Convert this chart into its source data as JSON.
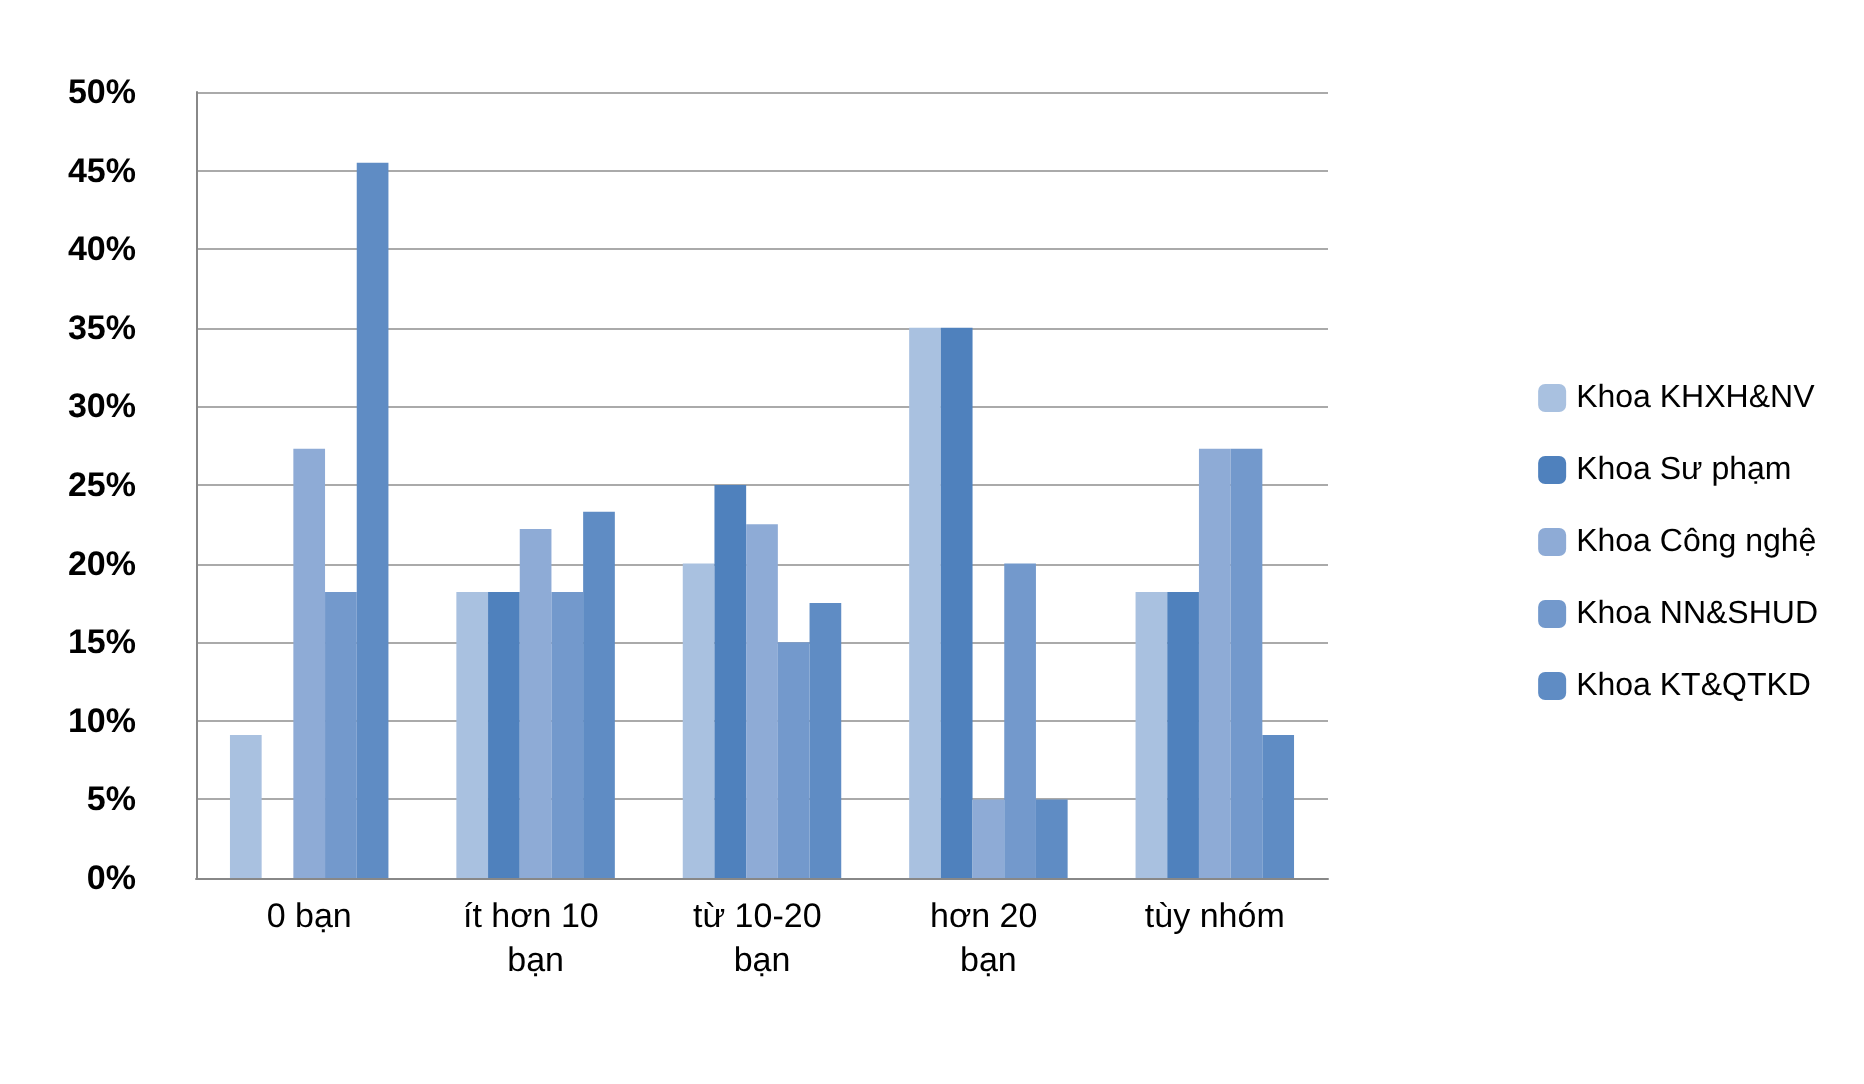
{
  "chart_data": {
    "type": "bar",
    "categories": [
      "0 bạn",
      "ít hơn 10 bạn",
      "từ 10-20 bạn",
      "hơn 20 bạn",
      "tùy nhóm"
    ],
    "series": [
      {
        "name": "Khoa KHXH&NV",
        "color": "#a9c1e0",
        "values": [
          9.1,
          18.2,
          20,
          35,
          18.2
        ]
      },
      {
        "name": "Khoa Sư phạm",
        "color": "#4f81bd",
        "values": [
          0,
          18.2,
          25,
          35,
          18.2
        ]
      },
      {
        "name": "Khoa Công nghệ",
        "color": "#8eabd6",
        "values": [
          27.3,
          22.2,
          22.5,
          5,
          27.3
        ]
      },
      {
        "name": "Khoa NN&SHUD",
        "color": "#7399cc",
        "values": [
          18.2,
          18.2,
          15,
          20,
          27.3
        ]
      },
      {
        "name": "Khoa KT&QTKD",
        "color": "#5f8cc4",
        "values": [
          45.5,
          23.3,
          17.5,
          5,
          9.1
        ]
      }
    ],
    "ylim": [
      0,
      50
    ],
    "yticks": [
      {
        "value": 0,
        "label": "0%"
      },
      {
        "value": 5,
        "label": "5%"
      },
      {
        "value": 10,
        "label": "10%"
      },
      {
        "value": 15,
        "label": "15%"
      },
      {
        "value": 20,
        "label": "20%"
      },
      {
        "value": 25,
        "label": "25%"
      },
      {
        "value": 30,
        "label": "30%"
      },
      {
        "value": 35,
        "label": "35%"
      },
      {
        "value": 40,
        "label": "40%"
      },
      {
        "value": 45,
        "label": "45%"
      },
      {
        "value": 50,
        "label": "50%"
      }
    ],
    "grid": "y",
    "legend": "right"
  }
}
